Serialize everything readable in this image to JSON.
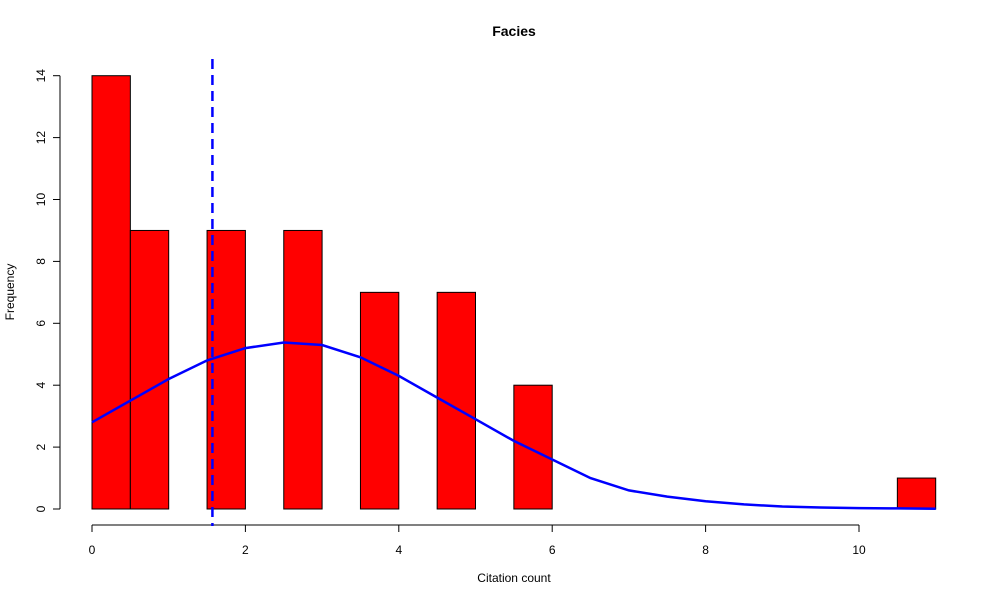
{
  "chart_data": {
    "type": "bar",
    "title": "Facies",
    "xlabel": "Citation count",
    "ylabel": "Frequency",
    "xlim": [
      0,
      11
    ],
    "ylim": [
      0,
      14
    ],
    "x_ticks": [
      0,
      2,
      4,
      6,
      8,
      10
    ],
    "y_ticks": [
      0,
      2,
      4,
      6,
      8,
      10,
      12,
      14
    ],
    "bins": [
      {
        "start": 0.0,
        "end": 0.5,
        "count": 14
      },
      {
        "start": 0.5,
        "end": 1.0,
        "count": 9
      },
      {
        "start": 1.0,
        "end": 1.5,
        "count": 0
      },
      {
        "start": 1.5,
        "end": 2.0,
        "count": 9
      },
      {
        "start": 2.0,
        "end": 2.5,
        "count": 0
      },
      {
        "start": 2.5,
        "end": 3.0,
        "count": 9
      },
      {
        "start": 3.0,
        "end": 3.5,
        "count": 0
      },
      {
        "start": 3.5,
        "end": 4.0,
        "count": 7
      },
      {
        "start": 4.0,
        "end": 4.5,
        "count": 0
      },
      {
        "start": 4.5,
        "end": 5.0,
        "count": 7
      },
      {
        "start": 5.0,
        "end": 5.5,
        "count": 0
      },
      {
        "start": 5.5,
        "end": 6.0,
        "count": 4
      },
      {
        "start": 6.0,
        "end": 6.5,
        "count": 0
      },
      {
        "start": 6.5,
        "end": 7.0,
        "count": 0
      },
      {
        "start": 7.0,
        "end": 7.5,
        "count": 0
      },
      {
        "start": 7.5,
        "end": 8.0,
        "count": 0
      },
      {
        "start": 8.0,
        "end": 8.5,
        "count": 0
      },
      {
        "start": 8.5,
        "end": 9.0,
        "count": 0
      },
      {
        "start": 9.0,
        "end": 9.5,
        "count": 0
      },
      {
        "start": 9.5,
        "end": 10.0,
        "count": 0
      },
      {
        "start": 10.0,
        "end": 10.5,
        "count": 0
      },
      {
        "start": 10.5,
        "end": 11.0,
        "count": 1
      }
    ],
    "bar_color": "#ff0000",
    "density_curve": {
      "color": "#0000ff",
      "x": [
        0,
        0.5,
        1,
        1.5,
        2,
        2.5,
        3,
        3.5,
        4,
        4.5,
        5,
        5.5,
        6,
        6.5,
        7,
        7.5,
        8,
        8.5,
        9,
        9.5,
        10,
        10.5,
        11
      ],
      "y": [
        2.8,
        3.5,
        4.2,
        4.8,
        5.2,
        5.38,
        5.3,
        4.9,
        4.3,
        3.6,
        2.9,
        2.2,
        1.6,
        1.0,
        0.6,
        0.4,
        0.25,
        0.15,
        0.08,
        0.05,
        0.03,
        0.02,
        0.01
      ]
    },
    "mean_line": {
      "x": 1.57,
      "color": "#0000ff",
      "style": "dashed"
    },
    "grid": false,
    "legend": "none"
  }
}
